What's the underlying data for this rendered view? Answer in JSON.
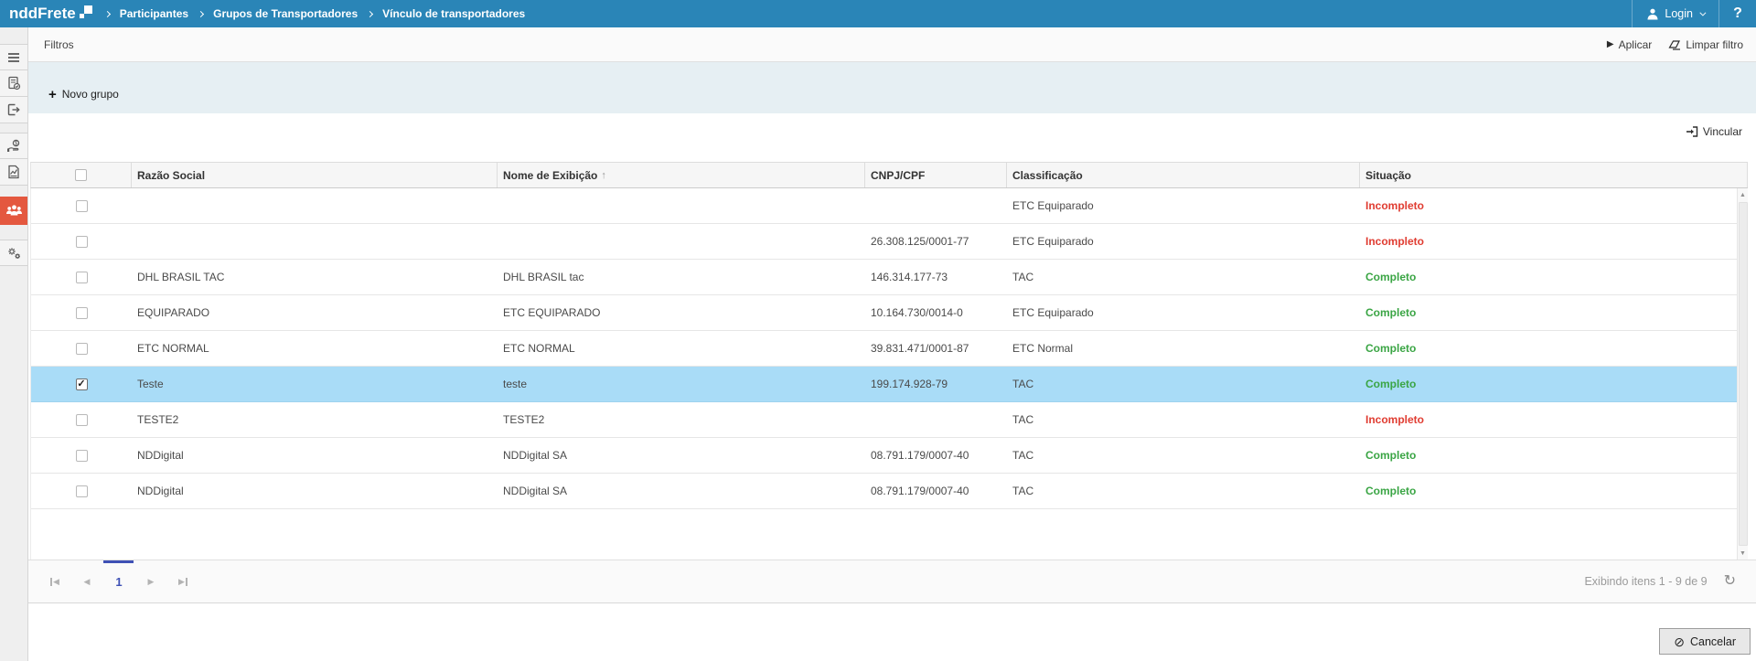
{
  "topbar": {
    "logo_text": "nddFrete",
    "breadcrumbs": [
      "Participantes",
      "Grupos de Transportadores",
      "Vínculo de transportadores"
    ],
    "login_label": "Login",
    "help_label": "?"
  },
  "sidebar": {
    "items": [
      {
        "icon": "menu-icon",
        "active": false
      },
      {
        "icon": "document-check-icon",
        "active": false
      },
      {
        "icon": "exit-icon",
        "active": false
      },
      {
        "icon": "money-hand-icon",
        "active": false
      },
      {
        "icon": "report-icon",
        "active": false
      },
      {
        "icon": "participants-group-icon",
        "active": true
      },
      {
        "icon": "settings-gears-icon",
        "active": false
      }
    ]
  },
  "filters": {
    "title": "Filtros",
    "apply_label": "Aplicar",
    "apply_icon": "play-icon",
    "clear_label": "Limpar filtro",
    "clear_icon": "eraser-icon"
  },
  "toolbar": {
    "new_group_label": "Novo grupo",
    "new_group_icon": "plus-icon"
  },
  "link_action": {
    "label": "Vincular",
    "icon": "sign-in-icon"
  },
  "table": {
    "columns": [
      "Razão Social",
      "Nome de Exibição",
      "CNPJ/CPF",
      "Classificação",
      "Situação"
    ],
    "sorted_column": "Nome de Exibição",
    "sort_arrow": "↑",
    "rows": [
      {
        "razao_social": "",
        "nome_exibicao": "",
        "cnpj_cpf": "",
        "classificacao": "ETC Equiparado",
        "situacao": "Incompleto",
        "checked": false,
        "selected": false
      },
      {
        "razao_social": "",
        "nome_exibicao": "",
        "cnpj_cpf": "26.308.125/0001-77",
        "classificacao": "ETC Equiparado",
        "situacao": "Incompleto",
        "checked": false,
        "selected": false
      },
      {
        "razao_social": "DHL BRASIL TAC",
        "nome_exibicao": "DHL BRASIL tac",
        "cnpj_cpf": "146.314.177-73",
        "classificacao": "TAC",
        "situacao": "Completo",
        "checked": false,
        "selected": false
      },
      {
        "razao_social": "EQUIPARADO",
        "nome_exibicao": "ETC EQUIPARADO",
        "cnpj_cpf": "10.164.730/0014-0",
        "classificacao": "ETC Equiparado",
        "situacao": "Completo",
        "checked": false,
        "selected": false
      },
      {
        "razao_social": "ETC NORMAL",
        "nome_exibicao": "ETC NORMAL",
        "cnpj_cpf": "39.831.471/0001-87",
        "classificacao": "ETC Normal",
        "situacao": "Completo",
        "checked": false,
        "selected": false
      },
      {
        "razao_social": "Teste",
        "nome_exibicao": "teste",
        "cnpj_cpf": "199.174.928-79",
        "classificacao": "TAC",
        "situacao": "Completo",
        "checked": true,
        "selected": true
      },
      {
        "razao_social": "TESTE2",
        "nome_exibicao": "TESTE2",
        "cnpj_cpf": "",
        "classificacao": "TAC",
        "situacao": "Incompleto",
        "checked": false,
        "selected": false
      },
      {
        "razao_social": "NDDigital",
        "nome_exibicao": "NDDigital SA",
        "cnpj_cpf": "08.791.179/0007-40",
        "classificacao": "TAC",
        "situacao": "Completo",
        "checked": false,
        "selected": false
      },
      {
        "razao_social": "NDDigital",
        "nome_exibicao": "NDDigital SA",
        "cnpj_cpf": "08.791.179/0007-40",
        "classificacao": "TAC",
        "situacao": "Completo",
        "checked": false,
        "selected": false
      }
    ]
  },
  "pagination": {
    "current_page": "1",
    "status_text": "Exibindo itens 1 - 9 de 9",
    "refresh_icon": "refresh-icon"
  },
  "footer": {
    "cancel_label": "Cancelar",
    "cancel_icon": "cancel-icon"
  },
  "colors": {
    "topbar_blue": "#2a85b7",
    "sidebar_active_orange": "#e4583f",
    "selected_row_blue": "#a9dcf7",
    "status_complete_green": "#3aa544",
    "status_incomplete_red": "#e03c31",
    "pager_accent_blue": "#3f51b5"
  }
}
